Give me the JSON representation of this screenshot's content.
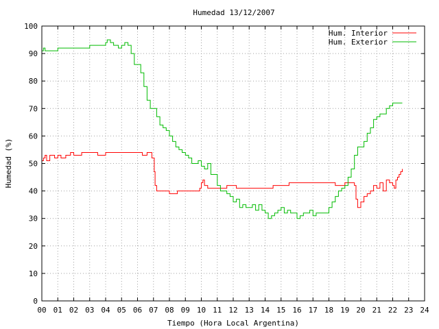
{
  "chart_data": {
    "type": "line",
    "title": "Humedad 13/12/2007",
    "xlabel": "Tiempo (Hora Local Argentina)",
    "ylabel": "Humedad (%)",
    "xlim": [
      0,
      24
    ],
    "ylim": [
      0,
      100
    ],
    "x_ticks": [
      "00",
      "01",
      "02",
      "03",
      "04",
      "05",
      "06",
      "07",
      "08",
      "09",
      "10",
      "11",
      "12",
      "13",
      "14",
      "15",
      "16",
      "17",
      "18",
      "19",
      "20",
      "21",
      "22",
      "23",
      "24"
    ],
    "y_ticks": [
      "0",
      "10",
      "20",
      "30",
      "40",
      "50",
      "60",
      "70",
      "80",
      "90",
      "100"
    ],
    "grid": true,
    "legend_position": "top-right",
    "series": [
      {
        "name": "Hum. Interior",
        "color": "#ff0000",
        "x": [
          0,
          0.1,
          0.2,
          0.3,
          0.5,
          0.8,
          1.0,
          1.2,
          1.5,
          1.8,
          2.0,
          2.5,
          3.0,
          3.5,
          4.0,
          4.5,
          5.0,
          5.5,
          6.0,
          6.3,
          6.6,
          6.9,
          7.0,
          7.05,
          7.1,
          7.2,
          7.4,
          7.8,
          8.0,
          8.5,
          9.0,
          9.5,
          9.9,
          10.0,
          10.1,
          10.2,
          10.4,
          10.8,
          11.0,
          11.3,
          11.6,
          12.0,
          12.2,
          12.5,
          13.0,
          13.5,
          14.0,
          14.5,
          15.0,
          15.5,
          16.0,
          16.5,
          17.0,
          17.5,
          18.0,
          18.4,
          18.7,
          19.0,
          19.3,
          19.6,
          19.7,
          19.8,
          20.0,
          20.2,
          20.4,
          20.6,
          20.8,
          21.0,
          21.2,
          21.4,
          21.6,
          21.8,
          22.0,
          22.1,
          22.2,
          22.3,
          22.4,
          22.5,
          22.6
        ],
        "y": [
          51,
          52,
          53,
          51,
          53,
          52,
          53,
          52,
          53,
          54,
          53,
          54,
          54,
          53,
          54,
          54,
          54,
          54,
          54,
          53,
          54,
          52,
          52,
          47,
          42,
          40,
          40,
          40,
          39,
          40,
          40,
          40,
          41,
          43,
          44,
          42,
          41,
          41,
          41,
          41,
          42,
          42,
          41,
          41,
          41,
          41,
          41,
          42,
          42,
          43,
          43,
          43,
          43,
          43,
          43,
          42,
          42,
          43,
          43,
          42,
          37,
          34,
          36,
          38,
          39,
          40,
          42,
          41,
          43,
          40,
          44,
          43,
          42,
          41,
          44,
          45,
          46,
          47,
          48
        ]
      },
      {
        "name": "Hum. Exterior",
        "color": "#00bb00",
        "x": [
          0,
          0.1,
          0.2,
          0.5,
          0.8,
          1.0,
          1.2,
          1.5,
          2.0,
          2.5,
          3.0,
          3.3,
          3.6,
          4.0,
          4.1,
          4.3,
          4.5,
          4.8,
          5.0,
          5.2,
          5.4,
          5.6,
          5.8,
          6.0,
          6.2,
          6.4,
          6.6,
          6.8,
          7.0,
          7.2,
          7.4,
          7.6,
          7.8,
          8.0,
          8.2,
          8.4,
          8.6,
          8.8,
          9.0,
          9.2,
          9.4,
          9.6,
          9.8,
          10.0,
          10.2,
          10.4,
          10.6,
          10.8,
          11.0,
          11.2,
          11.4,
          11.6,
          11.8,
          12.0,
          12.2,
          12.4,
          12.6,
          12.8,
          13.0,
          13.2,
          13.4,
          13.6,
          13.8,
          14.0,
          14.2,
          14.4,
          14.6,
          14.8,
          15.0,
          15.2,
          15.4,
          15.6,
          15.8,
          16.0,
          16.2,
          16.4,
          16.6,
          16.8,
          17.0,
          17.2,
          17.4,
          17.6,
          17.8,
          18.0,
          18.2,
          18.4,
          18.6,
          18.8,
          19.0,
          19.2,
          19.4,
          19.6,
          19.8,
          20.0,
          20.2,
          20.4,
          20.6,
          20.8,
          21.0,
          21.2,
          21.4,
          21.6,
          21.8,
          22.0,
          22.2,
          22.4,
          22.6
        ],
        "y": [
          91,
          92,
          91,
          91,
          91,
          92,
          92,
          92,
          92,
          92,
          93,
          93,
          93,
          94,
          95,
          94,
          93,
          92,
          93,
          94,
          93,
          90,
          86,
          86,
          83,
          78,
          73,
          70,
          70,
          67,
          64,
          63,
          62,
          60,
          58,
          56,
          55,
          54,
          53,
          52,
          50,
          50,
          51,
          49,
          48,
          50,
          46,
          46,
          42,
          40,
          40,
          39,
          38,
          36,
          37,
          34,
          35,
          34,
          34,
          35,
          33,
          35,
          33,
          32,
          30,
          31,
          32,
          33,
          34,
          32,
          33,
          32,
          32,
          30,
          31,
          32,
          32,
          33,
          31,
          32,
          32,
          32,
          32,
          34,
          36,
          38,
          40,
          41,
          42,
          45,
          48,
          53,
          56,
          56,
          58,
          61,
          63,
          66,
          67,
          68,
          68,
          70,
          71,
          72,
          72,
          72,
          72
        ]
      }
    ]
  }
}
